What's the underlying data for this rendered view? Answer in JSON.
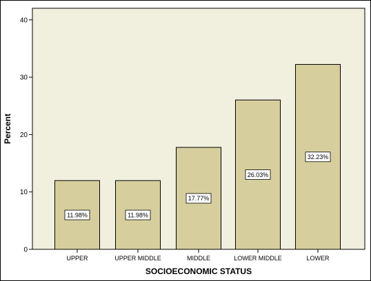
{
  "chart_data": {
    "type": "bar",
    "title": "",
    "xlabel": "SOCIOECONOMIC STATUS",
    "ylabel": "Percent",
    "categories": [
      "UPPER",
      "UPPER MIDDLE",
      "MIDDLE",
      "LOWER MIDDLE",
      "LOWER"
    ],
    "values": [
      11.98,
      11.98,
      17.77,
      26.03,
      32.23
    ],
    "data_labels": [
      "11.98%",
      "11.98%",
      "17.77%",
      "26.03%",
      "32.23%"
    ],
    "yticks": [
      0,
      10,
      20,
      30,
      40
    ],
    "ylim": [
      0,
      40
    ],
    "grid": false,
    "colors": {
      "plot_background": "#f1efdd",
      "bar_fill": "#d6cf9d",
      "bar_stroke": "#000000"
    }
  }
}
